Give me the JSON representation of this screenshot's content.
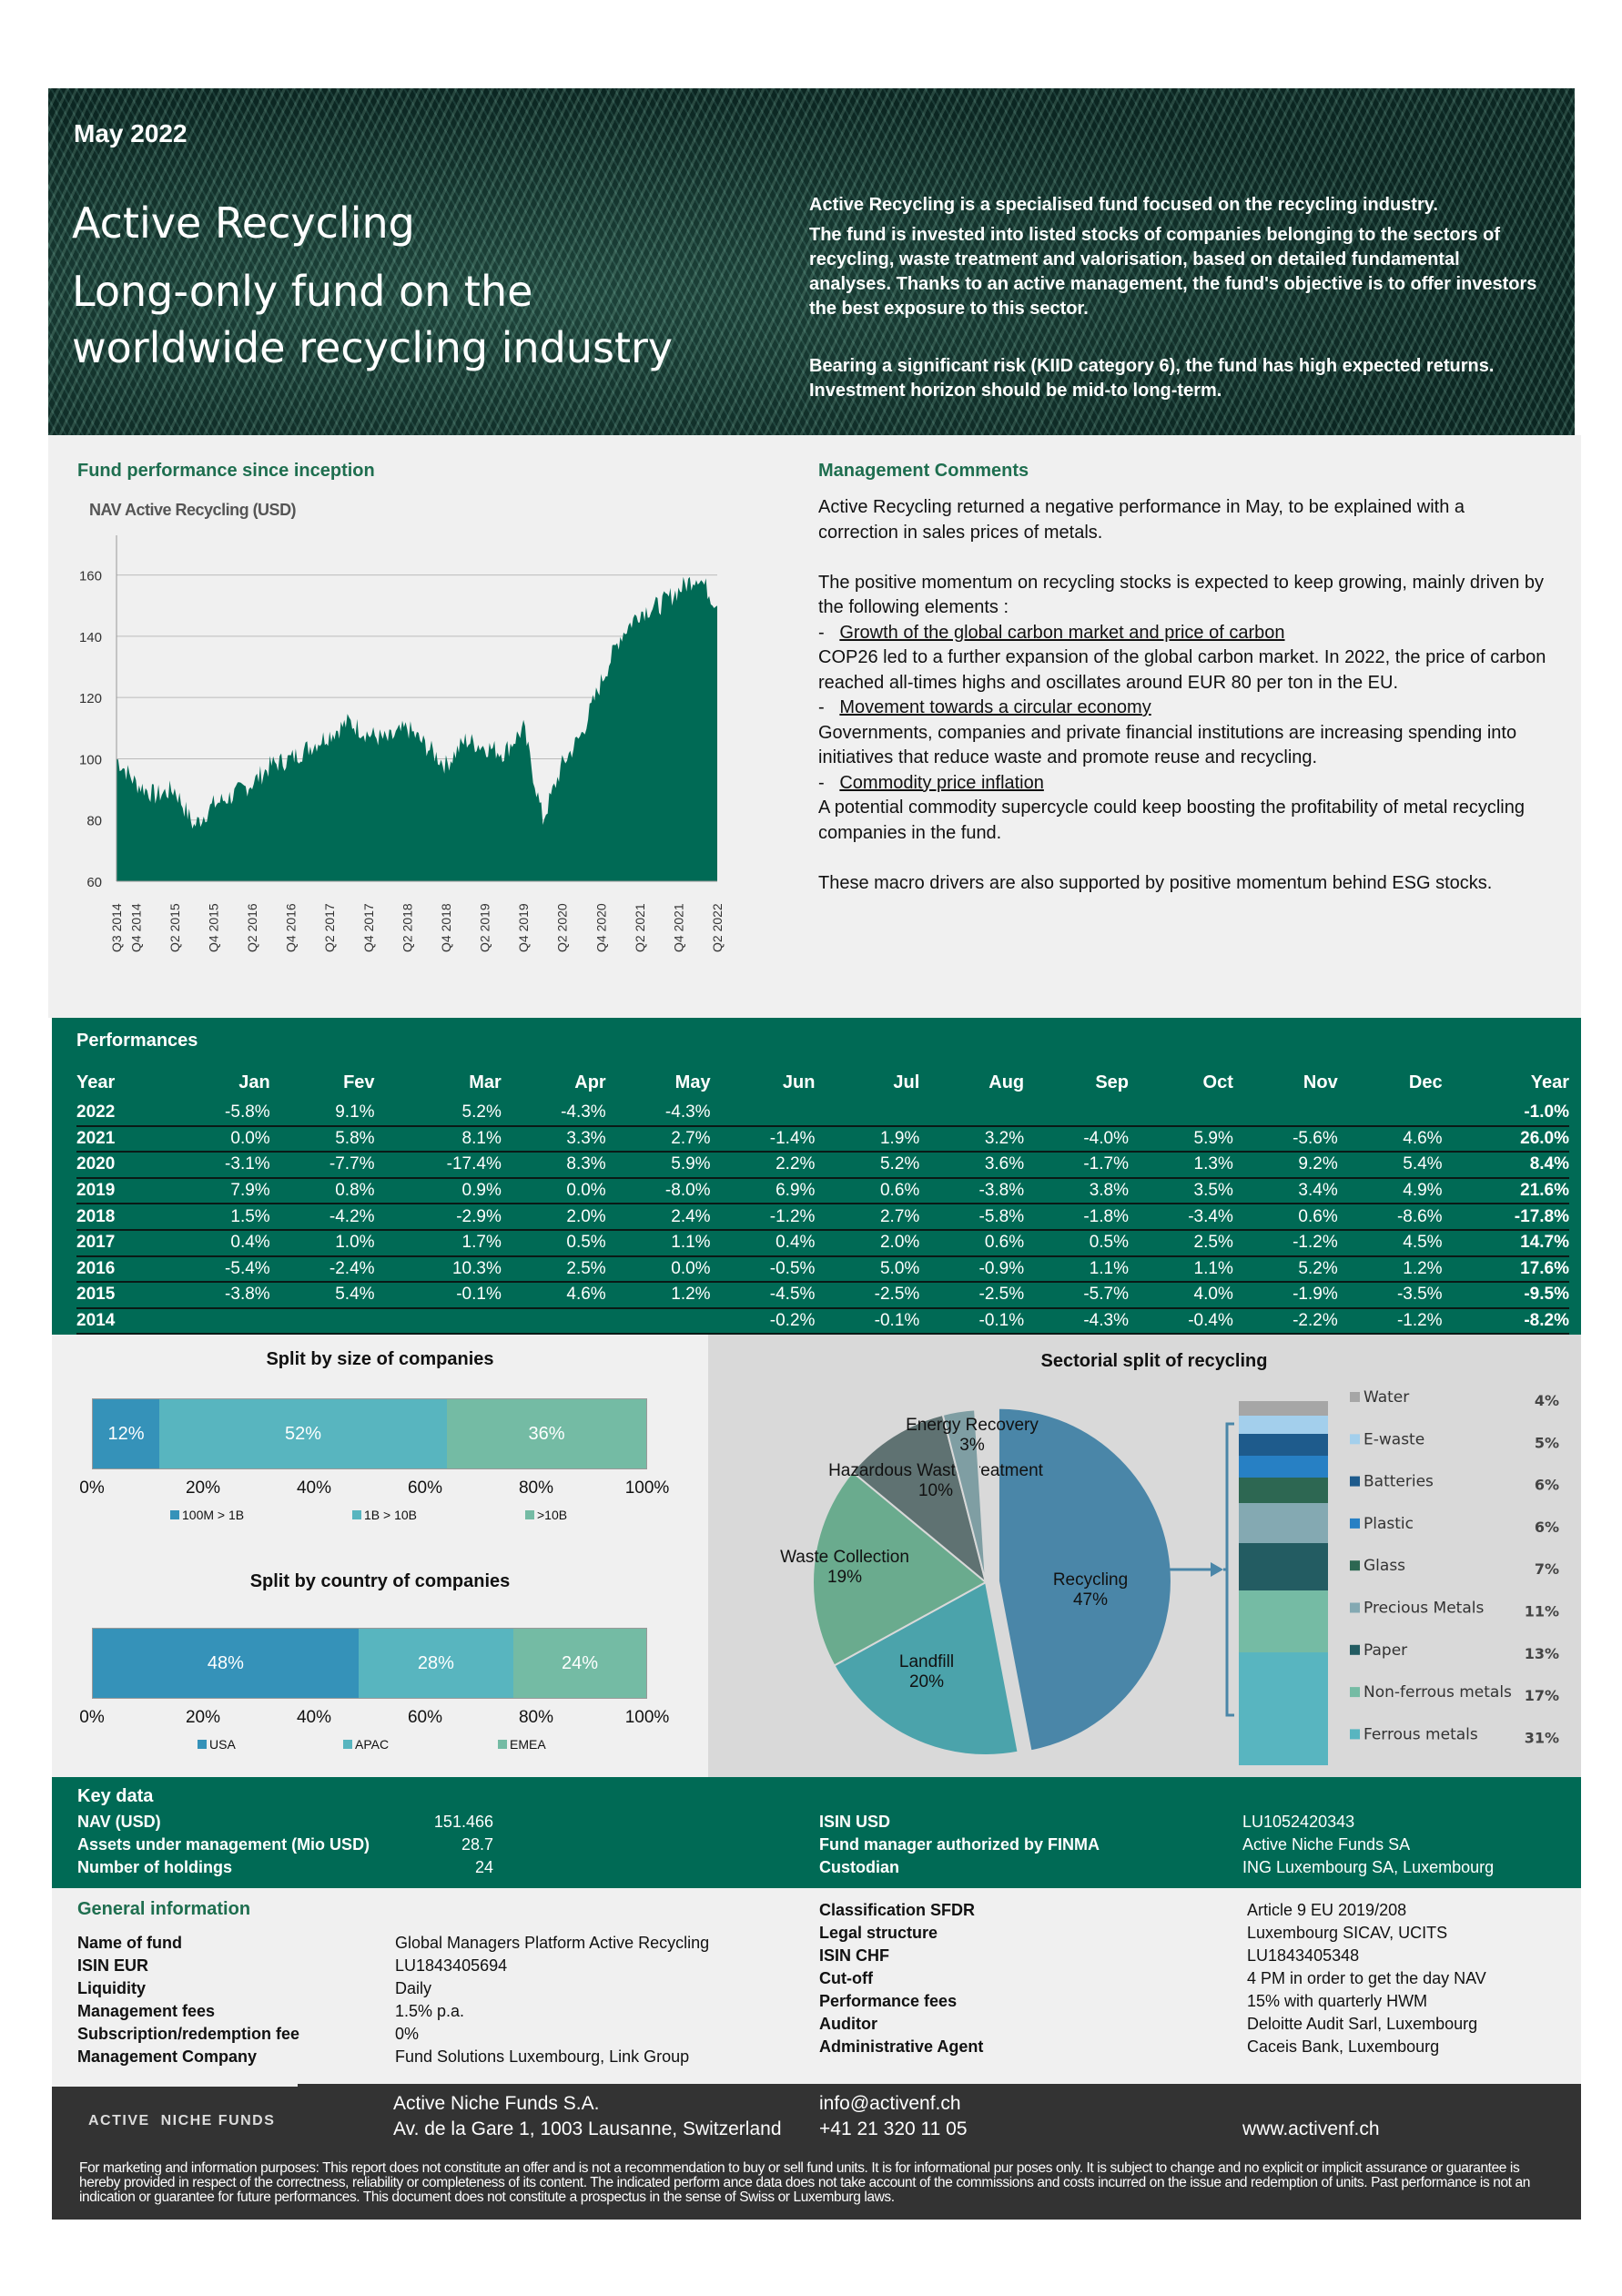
{
  "header": {
    "date": "May 2022",
    "title": "Active Recycling",
    "subtitle_line1": "Long-only fund on the",
    "subtitle_line2": "worldwide recycling industry",
    "desc1": "Active Recycling is a specialised fund focused on the recycling industry.",
    "desc2": "The fund is invested into listed stocks of companies belonging to the sectors of recycling, waste treatment and valorisation, based on detailed fundamental analyses. Thanks to an active management, the fund's objective is to offer investors the best exposure to this sector.",
    "desc3": "Bearing a significant risk (KIID category 6), the fund has high expected returns.  Investment horizon should be mid-to long-term."
  },
  "performance_section": {
    "title": "Fund performance since inception",
    "chart_title": "NAV Active Recycling (USD)"
  },
  "management": {
    "title": "Management Comments",
    "p1": "Active Recycling returned a negative performance in May, to be explained with a correction in sales prices of metals.",
    "p2": "The positive momentum on recycling stocks is expected to keep growing, mainly driven by the following elements  :",
    "b1": "Growth of the global carbon market and price of carbon",
    "b1_text": "COP26 led to a further expansion of the global carbon market. In 2022, the price of carbon reached all-times highs and oscillates around EUR 80 per ton in the EU.",
    "b2": "Movement towards a circular economy",
    "b2_text": "Governments, companies and private financial institutions are increasing spending into initiatives that reduce waste and promote reuse and recycling.",
    "b3": "Commodity price inflation",
    "b3_text": "A potential commodity supercycle could keep boosting the profitability of metal recycling companies in the fund.",
    "p3": "These macro drivers are also supported by positive momentum behind ESG stocks.",
    "dash": "-"
  },
  "chart_data": [
    {
      "type": "area",
      "title": "NAV Active Recycling (USD)",
      "ylim": [
        60,
        170
      ],
      "yticks": [
        "60",
        "80",
        "100",
        "120",
        "140",
        "160"
      ],
      "x": [
        "Q3 2014",
        "Q4 2014",
        "Q1 2015",
        "Q2 2015",
        "Q3 2015",
        "Q4 2015",
        "Q1 2016",
        "Q2 2016",
        "Q3 2016",
        "Q4 2016",
        "Q1 2017",
        "Q2 2017",
        "Q3 2017",
        "Q4 2017",
        "Q1 2018",
        "Q2 2018",
        "Q3 2018",
        "Q4 2018",
        "Q1 2019",
        "Q2 2019",
        "Q3 2019",
        "Q4 2019",
        "Q1 2020",
        "Q2 2020",
        "Q3 2020",
        "Q4 2020",
        "Q1 2021",
        "Q2 2021",
        "Q3 2021",
        "Q4 2021",
        "Q1 2022",
        "Q2 2022"
      ],
      "values": [
        100,
        92,
        88,
        90,
        78,
        85,
        88,
        92,
        98,
        100,
        104,
        108,
        112,
        108,
        106,
        110,
        104,
        98,
        106,
        104,
        102,
        110,
        80,
        98,
        108,
        125,
        140,
        148,
        150,
        155,
        160,
        150
      ],
      "xticks": [
        "Q3 2014",
        "Q4 2014",
        "Q2 2015",
        "Q4 2015",
        "Q2 2016",
        "Q4 2016",
        "Q2 2017",
        "Q4 2017",
        "Q2 2018",
        "Q4 2018",
        "Q2 2019",
        "Q4 2019",
        "Q2 2020",
        "Q4 2020",
        "Q2 2021",
        "Q4 2021",
        "Q2 2022"
      ],
      "color": "#006a55"
    },
    {
      "type": "bar",
      "title": "Split by size of companies",
      "categories": [
        "100M > 1B",
        "1B > 10B",
        ">10B"
      ],
      "values": [
        12,
        52,
        36
      ],
      "labels": [
        "12%",
        "52%",
        "36%"
      ],
      "colors": [
        "#3592b9",
        "#58b5bf",
        "#74bba4"
      ],
      "xticks": [
        "0%",
        "20%",
        "40%",
        "60%",
        "80%",
        "100%"
      ]
    },
    {
      "type": "bar",
      "title": "Split by country of companies",
      "categories": [
        "USA",
        "APAC",
        "EMEA"
      ],
      "values": [
        48,
        28,
        24
      ],
      "labels": [
        "48%",
        "28%",
        "24%"
      ],
      "colors": [
        "#3592b9",
        "#58b5bf",
        "#74bba4"
      ],
      "xticks": [
        "0%",
        "20%",
        "40%",
        "60%",
        "80%",
        "100%"
      ]
    },
    {
      "type": "pie",
      "title": "Sectorial split of recycling",
      "categories": [
        "Recycling",
        "Landfill",
        "Waste Collection",
        "Hazardous Waste treatment",
        "Energy Recovery"
      ],
      "values": [
        47,
        20,
        19,
        10,
        3
      ],
      "labels": [
        "47%",
        "20%",
        "19%",
        "10%",
        "3%"
      ],
      "colors": [
        "#4a86a8",
        "#4ba3ab",
        "#6aab8e",
        "#5f7272",
        "#7f9ea3"
      ]
    },
    {
      "type": "bar",
      "title": "Recycling breakdown",
      "categories": [
        "Water",
        "E-waste",
        "Batteries",
        "Plastic",
        "Glass",
        "Precious Metals",
        "Paper",
        "Non-ferrous metals",
        "Ferrous metals"
      ],
      "values": [
        4,
        5,
        6,
        6,
        7,
        11,
        13,
        17,
        31
      ],
      "labels": [
        "4%",
        "5%",
        "6%",
        "6%",
        "7%",
        "11%",
        "13%",
        "17%",
        "31%"
      ],
      "colors": [
        "#a6a6a6",
        "#a3cfec",
        "#1e5b8c",
        "#2780c4",
        "#2d6752",
        "#84a9b2",
        "#235c62",
        "#75bba4",
        "#58b5c0"
      ]
    }
  ],
  "performances": {
    "title": "Performances",
    "headers": [
      "Year",
      "Jan",
      "Fev",
      "Mar",
      "Apr",
      "May",
      "Jun",
      "Jul",
      "Aug",
      "Sep",
      "Oct",
      "Nov",
      "Dec",
      "Year"
    ],
    "rows": [
      [
        "2022",
        "-5.8%",
        "9.1%",
        "5.2%",
        "-4.3%",
        "-4.3%",
        "",
        "",
        "",
        "",
        "",
        "",
        "",
        "-1.0%"
      ],
      [
        "2021",
        "0.0%",
        "5.8%",
        "8.1%",
        "3.3%",
        "2.7%",
        "-1.4%",
        "1.9%",
        "3.2%",
        "-4.0%",
        "5.9%",
        "-5.6%",
        "4.6%",
        "26.0%"
      ],
      [
        "2020",
        "-3.1%",
        "-7.7%",
        "-17.4%",
        "8.3%",
        "5.9%",
        "2.2%",
        "5.2%",
        "3.6%",
        "-1.7%",
        "1.3%",
        "9.2%",
        "5.4%",
        "8.4%"
      ],
      [
        "2019",
        "7.9%",
        "0.8%",
        "0.9%",
        "0.0%",
        "-8.0%",
        "6.9%",
        "0.6%",
        "-3.8%",
        "3.8%",
        "3.5%",
        "3.4%",
        "4.9%",
        "21.6%"
      ],
      [
        "2018",
        "1.5%",
        "-4.2%",
        "-2.9%",
        "2.0%",
        "2.4%",
        "-1.2%",
        "2.7%",
        "-5.8%",
        "-1.8%",
        "-3.4%",
        "0.6%",
        "-8.6%",
        "-17.8%"
      ],
      [
        "2017",
        "0.4%",
        "1.0%",
        "1.7%",
        "0.5%",
        "1.1%",
        "0.4%",
        "2.0%",
        "0.6%",
        "0.5%",
        "2.5%",
        "-1.2%",
        "4.5%",
        "14.7%"
      ],
      [
        "2016",
        "-5.4%",
        "-2.4%",
        "10.3%",
        "2.5%",
        "0.0%",
        "-0.5%",
        "5.0%",
        "-0.9%",
        "1.1%",
        "1.1%",
        "5.2%",
        "1.2%",
        "17.6%"
      ],
      [
        "2015",
        "-3.8%",
        "5.4%",
        "-0.1%",
        "4.6%",
        "1.2%",
        "-4.5%",
        "-2.5%",
        "-2.5%",
        "-5.7%",
        "4.0%",
        "-1.9%",
        "-3.5%",
        "-9.5%"
      ],
      [
        "2014",
        "",
        "",
        "",
        "",
        "",
        "-0.2%",
        "-0.1%",
        "-0.1%",
        "-4.3%",
        "-0.4%",
        "-2.2%",
        "-1.2%",
        "-8.2%"
      ]
    ]
  },
  "key_data": {
    "title": "Key data",
    "left": [
      [
        "NAV (USD)",
        "151.466"
      ],
      [
        "Assets under management (Mio USD)",
        "28.7"
      ],
      [
        "Number of holdings",
        "24"
      ]
    ],
    "right": [
      [
        "ISIN USD",
        "LU1052420343"
      ],
      [
        "Fund manager authorized by FINMA",
        "Active Niche Funds SA"
      ],
      [
        "Custodian",
        "ING Luxembourg SA, Luxembourg"
      ]
    ]
  },
  "general_info": {
    "title": "General information",
    "left": [
      [
        "Name of fund",
        "Global Managers Platform Active Recycling"
      ],
      [
        "ISIN EUR",
        "LU1843405694"
      ],
      [
        "Liquidity",
        "Daily"
      ],
      [
        "Management fees",
        "1.5% p.a."
      ],
      [
        "Subscription/redemption fee",
        "0%"
      ],
      [
        "Management Company",
        "Fund Solutions Luxembourg, Link Group"
      ]
    ],
    "right": [
      [
        "Classification SFDR",
        "Article 9 EU 2019/208"
      ],
      [
        "Legal structure",
        "Luxembourg SICAV, UCITS"
      ],
      [
        "ISIN CHF",
        "LU1843405348"
      ],
      [
        "Cut-off",
        "4 PM in order to get the day NAV"
      ],
      [
        "Performance fees",
        "15% with quarterly HWM"
      ],
      [
        "Auditor",
        "Deloitte Audit Sarl, Luxembourg"
      ],
      [
        "Administrative Agent",
        "Caceis Bank, Luxembourg"
      ]
    ]
  },
  "footer": {
    "logo": "ACTIVE  NICHE FUNDS",
    "company": "Active Niche Funds S.A.",
    "address": "Av. de la Gare 1, 1003 Lausanne, Switzerland",
    "email": "info@activenf.ch",
    "phone": "+41 21 320 11 05",
    "web": "www.activenf.ch",
    "disclaimer": "For marketing and information purposes: This report does not constitute an offer and is not a recommendation to buy or sell fund units. It is for informational pur poses only. It is subject to change and no explicit or implicit assurance or guarantee is hereby provided in respect of the correctness, reliability or completeness of its content. The indicated perform ance data does not take account of the commissions and costs incurred on the issue and redemption of units. Past performance is not an indication or guarantee for future performances. This document does not constitute a prospectus in  the sense of Swiss or Luxemburg laws."
  }
}
